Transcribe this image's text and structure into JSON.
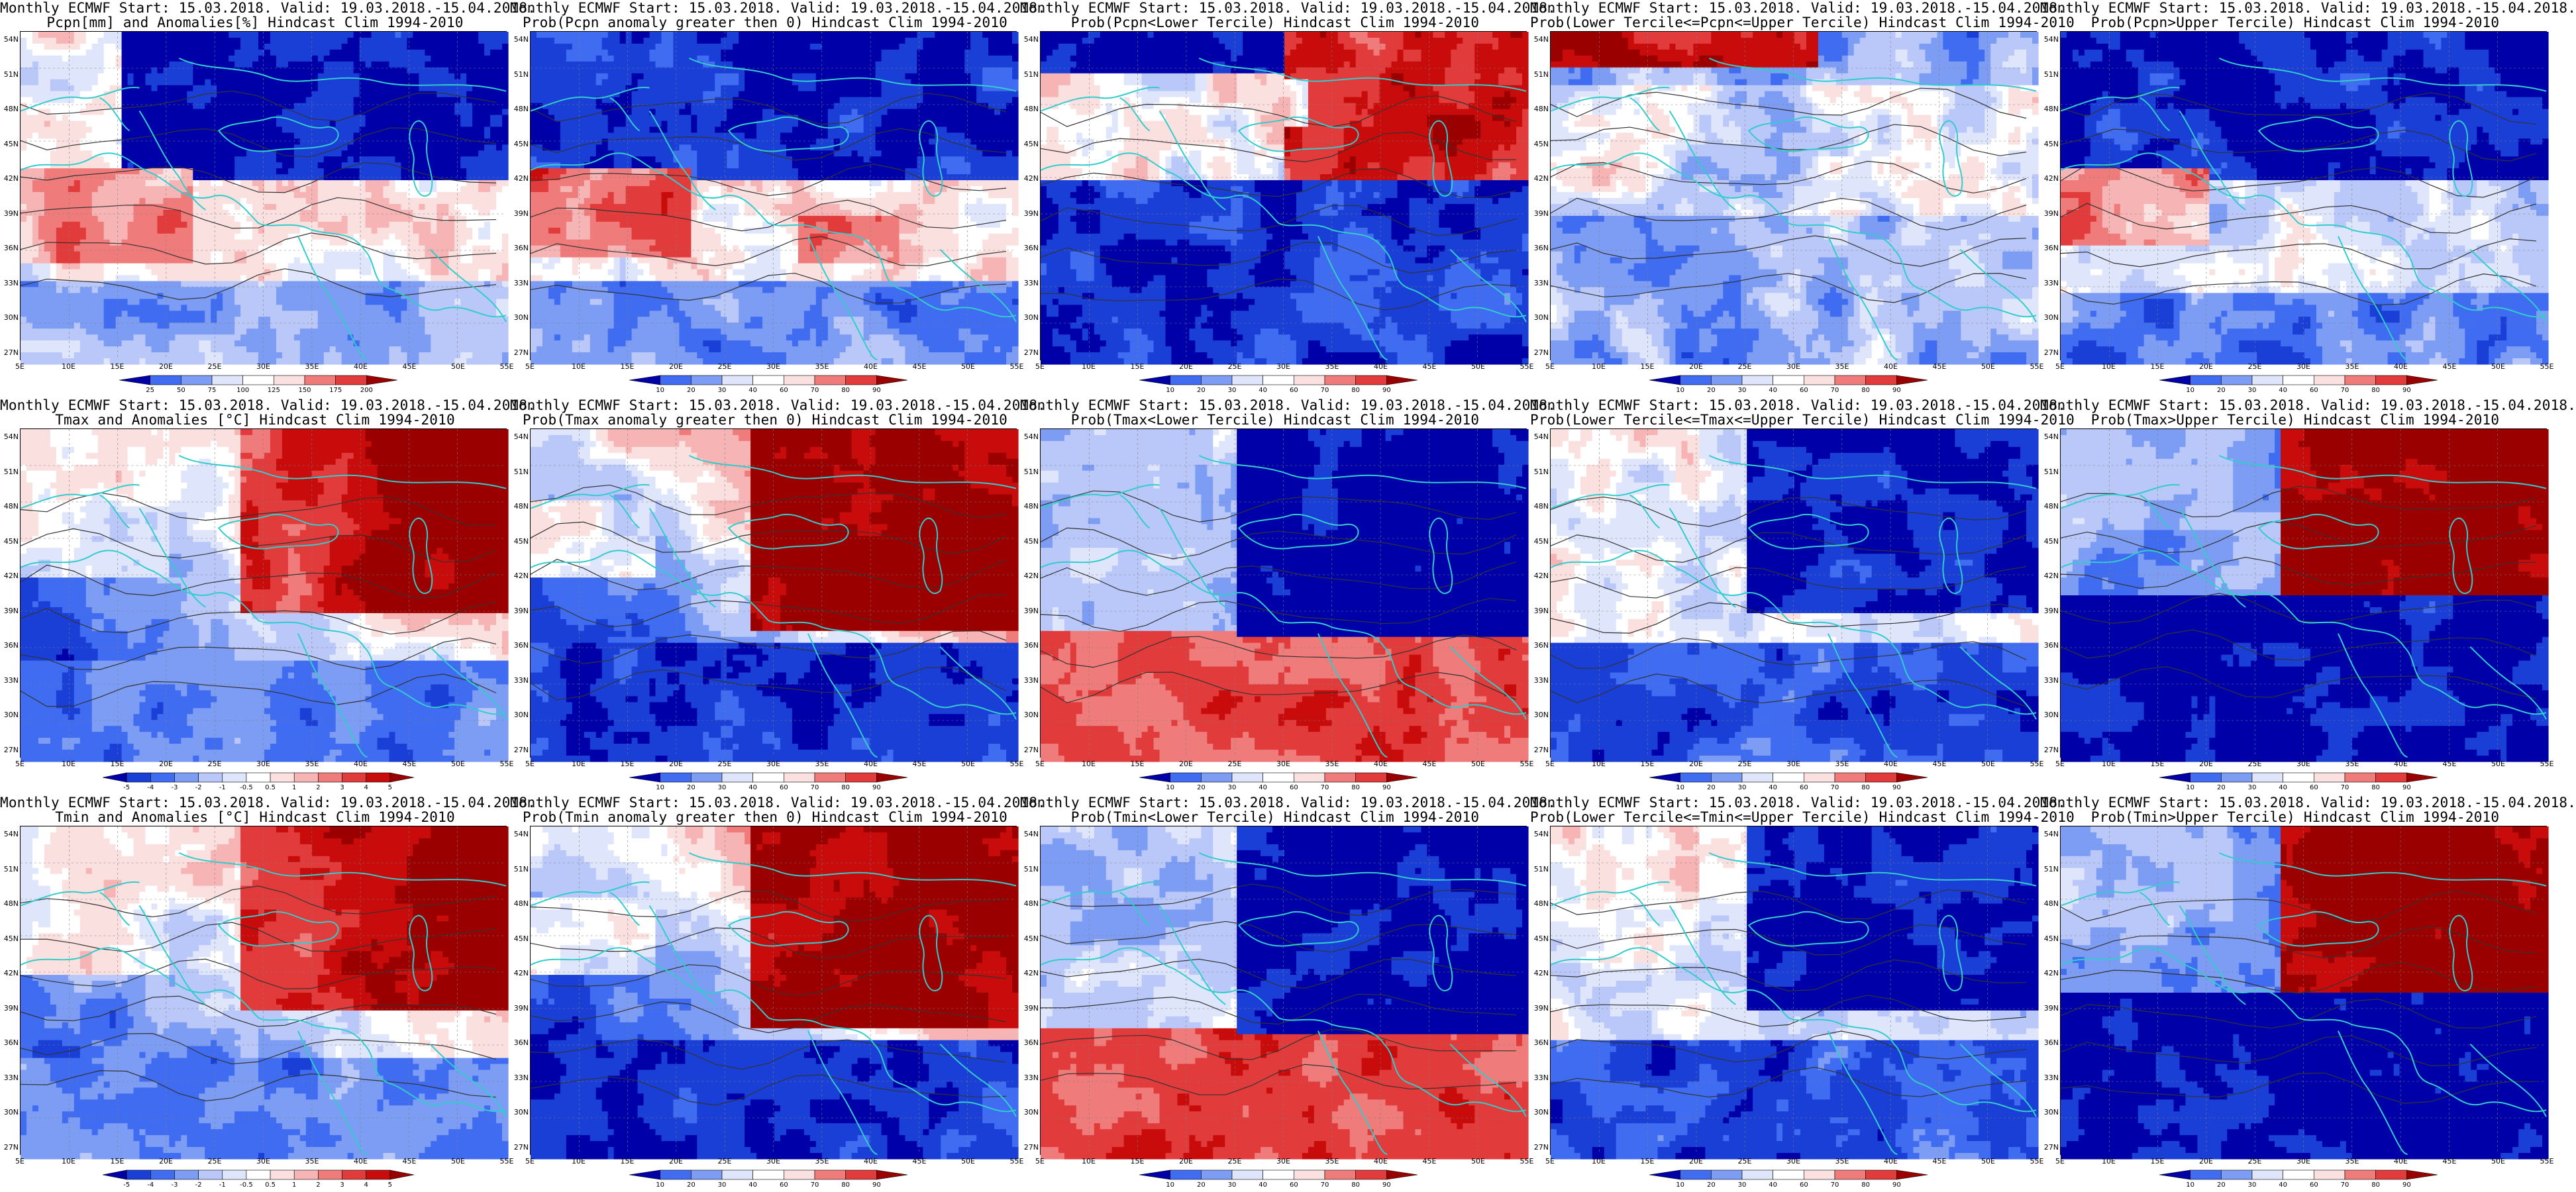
{
  "lat_labels": [
    "54N",
    "51N",
    "48N",
    "45N",
    "42N",
    "39N",
    "36N",
    "33N",
    "30N",
    "27N"
  ],
  "lon_labels": [
    "5E",
    "10E",
    "15E",
    "20E",
    "25E",
    "30E",
    "35E",
    "40E",
    "45E",
    "50E",
    "55E"
  ],
  "colors": {
    "coast": "#33cccc",
    "contour": "#333333",
    "blue_scale": [
      "#0000a8",
      "#1a3fd6",
      "#3f6cf0",
      "#7d9cf4",
      "#b9c8f8",
      "#dfe6fb"
    ],
    "red_scale": [
      "#fbe0e0",
      "#f7b4b4",
      "#ef7b7b",
      "#e23b3b",
      "#c80b0b",
      "#9a0000"
    ]
  },
  "panels": [
    {
      "id": "p00",
      "line1": "Monthly ECMWF Start: 15.03.2018. Valid: 19.03.2018.-15.04.2018.",
      "line2": "Pcpn[mm] and Anomalies[%] Hindcast Clim 1994-2010",
      "cbar": "pcpn",
      "pattern": "pcpn_anom"
    },
    {
      "id": "p01",
      "line1": "Monthly ECMWF Start: 15.03.2018. Valid: 19.03.2018.-15.04.2018.",
      "line2": "Prob(Pcpn anomaly greater then 0) Hindcast Clim 1994-2010",
      "cbar": "prob",
      "pattern": "pcpn_pos"
    },
    {
      "id": "p02",
      "line1": "Monthly ECMWF Start: 15.03.2018. Valid: 19.03.2018.-15.04.2018.",
      "line2": "Prob(Pcpn<Lower Tercile) Hindcast Clim 1994-2010",
      "cbar": "prob",
      "pattern": "pcpn_low"
    },
    {
      "id": "p03",
      "line1": "Monthly ECMWF Start: 15.03.2018. Valid: 19.03.2018.-15.04.2018.",
      "line2": "Prob(Lower Tercile<=Pcpn<=Upper Tercile) Hindcast Clim 1994-2010",
      "cbar": "prob",
      "pattern": "pcpn_mid"
    },
    {
      "id": "p04",
      "line1": "Monthly ECMWF Start: 15.03.2018. Valid: 19.03.2018.-15.04.2018.",
      "line2": "Prob(Pcpn>Upper Tercile) Hindcast Clim 1994-2010",
      "cbar": "prob",
      "pattern": "pcpn_up"
    },
    {
      "id": "p10",
      "line1": "Monthly ECMWF Start: 15.03.2018. Valid: 19.03.2018.-15.04.2018.",
      "line2": "Tmax and Anomalies [°C] Hindcast Clim 1994-2010",
      "cbar": "temp",
      "pattern": "t_anom"
    },
    {
      "id": "p11",
      "line1": "Monthly ECMWF Start: 15.03.2018. Valid: 19.03.2018.-15.04.2018.",
      "line2": "Prob(Tmax anomaly greater then 0) Hindcast Clim 1994-2010",
      "cbar": "prob",
      "pattern": "t_pos"
    },
    {
      "id": "p12",
      "line1": "Monthly ECMWF Start: 15.03.2018. Valid: 19.03.2018.-15.04.2018.",
      "line2": "Prob(Tmax<Lower Tercile) Hindcast Clim 1994-2010",
      "cbar": "prob",
      "pattern": "t_low"
    },
    {
      "id": "p13",
      "line1": "Monthly ECMWF Start: 15.03.2018. Valid: 19.03.2018.-15.04.2018.",
      "line2": "Prob(Lower Tercile<=Tmax<=Upper Tercile) Hindcast Clim 1994-2010",
      "cbar": "prob",
      "pattern": "t_mid"
    },
    {
      "id": "p14",
      "line1": "Monthly ECMWF Start: 15.03.2018. Valid: 19.03.2018.-15.04.2018.",
      "line2": "Prob(Tmax>Upper Tercile) Hindcast Clim 1994-2010",
      "cbar": "prob",
      "pattern": "t_up"
    },
    {
      "id": "p20",
      "line1": "Monthly ECMWF Start: 15.03.2018. Valid: 19.03.2018.-15.04.2018.",
      "line2": "Tmin and Anomalies [°C] Hindcast Clim 1994-2010",
      "cbar": "temp",
      "pattern": "t_anom"
    },
    {
      "id": "p21",
      "line1": "Monthly ECMWF Start: 15.03.2018. Valid: 19.03.2018.-15.04.2018.",
      "line2": "Prob(Tmin anomaly greater then 0) Hindcast Clim 1994-2010",
      "cbar": "prob",
      "pattern": "t_pos"
    },
    {
      "id": "p22",
      "line1": "Monthly ECMWF Start: 15.03.2018. Valid: 19.03.2018.-15.04.2018.",
      "line2": "Prob(Tmin<Lower Tercile) Hindcast Clim 1994-2010",
      "cbar": "prob",
      "pattern": "t_low"
    },
    {
      "id": "p23",
      "line1": "Monthly ECMWF Start: 15.03.2018. Valid: 19.03.2018.-15.04.2018.",
      "line2": "Prob(Lower Tercile<=Tmin<=Upper Tercile) Hindcast Clim 1994-2010",
      "cbar": "prob",
      "pattern": "t_mid"
    },
    {
      "id": "p24",
      "line1": "Monthly ECMWF Start: 15.03.2018. Valid: 19.03.2018.-15.04.2018.",
      "line2": "Prob(Tmin>Upper Tercile) Hindcast Clim 1994-2010",
      "cbar": "prob",
      "pattern": "t_up"
    }
  ],
  "colorbars": {
    "pcpn": {
      "labels": [
        "25",
        "50",
        "75",
        "100",
        "125",
        "150",
        "175",
        "200"
      ]
    },
    "prob": {
      "labels": [
        "10",
        "20",
        "30",
        "40",
        "60",
        "70",
        "80",
        "90"
      ]
    },
    "temp": {
      "labels": [
        "-5",
        "-4",
        "-3",
        "-2",
        "-1",
        "-0.5",
        "0.5",
        "1",
        "2",
        "3",
        "4",
        "5"
      ]
    }
  }
}
